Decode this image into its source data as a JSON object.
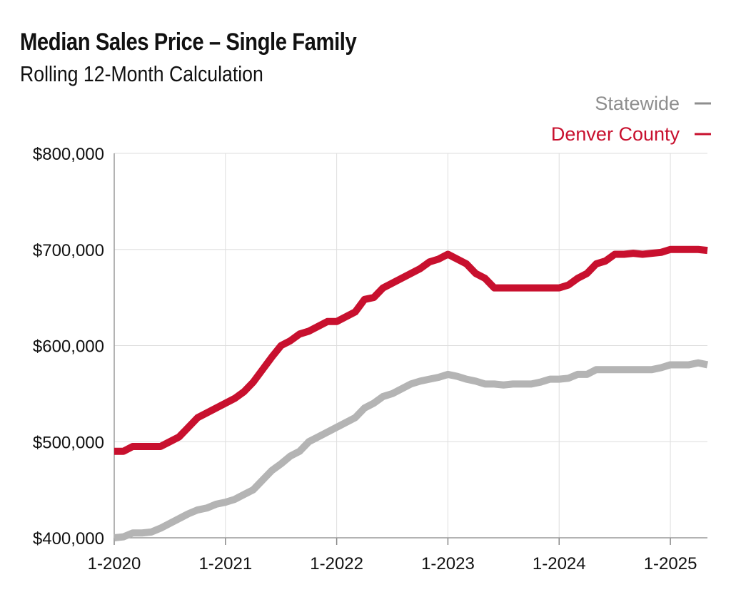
{
  "chart_data": {
    "type": "line",
    "title": "Median Sales Price – Single Family",
    "subtitle": "Rolling 12-Month Calculation",
    "xlabel": "",
    "ylabel": "",
    "ylim": [
      400000,
      800000
    ],
    "xlim": [
      "2020-01",
      "2025-05"
    ],
    "grid": true,
    "legend_position": "top-right",
    "x_ticks": [
      "1-2020",
      "1-2021",
      "1-2022",
      "1-2023",
      "1-2024",
      "1-2025"
    ],
    "y_ticks": [
      "$400,000",
      "$500,000",
      "$600,000",
      "$700,000",
      "$800,000"
    ],
    "y_tick_values": [
      400000,
      500000,
      600000,
      700000,
      800000
    ],
    "x": [
      "2020-01",
      "2020-02",
      "2020-03",
      "2020-04",
      "2020-05",
      "2020-06",
      "2020-07",
      "2020-08",
      "2020-09",
      "2020-10",
      "2020-11",
      "2020-12",
      "2021-01",
      "2021-02",
      "2021-03",
      "2021-04",
      "2021-05",
      "2021-06",
      "2021-07",
      "2021-08",
      "2021-09",
      "2021-10",
      "2021-11",
      "2021-12",
      "2022-01",
      "2022-02",
      "2022-03",
      "2022-04",
      "2022-05",
      "2022-06",
      "2022-07",
      "2022-08",
      "2022-09",
      "2022-10",
      "2022-11",
      "2022-12",
      "2023-01",
      "2023-02",
      "2023-03",
      "2023-04",
      "2023-05",
      "2023-06",
      "2023-07",
      "2023-08",
      "2023-09",
      "2023-10",
      "2023-11",
      "2023-12",
      "2024-01",
      "2024-02",
      "2024-03",
      "2024-04",
      "2024-05",
      "2024-06",
      "2024-07",
      "2024-08",
      "2024-09",
      "2024-10",
      "2024-11",
      "2024-12",
      "2025-01",
      "2025-02",
      "2025-03",
      "2025-04",
      "2025-05"
    ],
    "series": [
      {
        "name": "Statewide",
        "color": "#b4b4b4",
        "values": [
          400000,
          401000,
          405000,
          405000,
          406000,
          410000,
          415000,
          420000,
          425000,
          429000,
          431000,
          435000,
          437000,
          440000,
          445000,
          450000,
          460000,
          470000,
          477000,
          485000,
          490000,
          500000,
          505000,
          510000,
          515000,
          520000,
          525000,
          535000,
          540000,
          547000,
          550000,
          555000,
          560000,
          563000,
          565000,
          567000,
          570000,
          568000,
          565000,
          563000,
          560000,
          560000,
          559000,
          560000,
          560000,
          560000,
          562000,
          565000,
          565000,
          566000,
          570000,
          570000,
          575000,
          575000,
          575000,
          575000,
          575000,
          575000,
          575000,
          577000,
          580000,
          580000,
          580000,
          582000,
          580000
        ]
      },
      {
        "name": "Denver County",
        "color": "#c8102e",
        "values": [
          490000,
          490000,
          495000,
          495000,
          495000,
          495000,
          500000,
          505000,
          515000,
          525000,
          530000,
          535000,
          540000,
          545000,
          552000,
          562000,
          575000,
          588000,
          600000,
          605000,
          612000,
          615000,
          620000,
          625000,
          625000,
          630000,
          635000,
          648000,
          650000,
          660000,
          665000,
          670000,
          675000,
          680000,
          687000,
          690000,
          695000,
          690000,
          685000,
          675000,
          670000,
          660000,
          660000,
          660000,
          660000,
          660000,
          660000,
          660000,
          660000,
          663000,
          670000,
          675000,
          685000,
          688000,
          695000,
          695000,
          696000,
          695000,
          696000,
          697000,
          700000,
          700000,
          700000,
          700000,
          699000
        ]
      }
    ]
  }
}
